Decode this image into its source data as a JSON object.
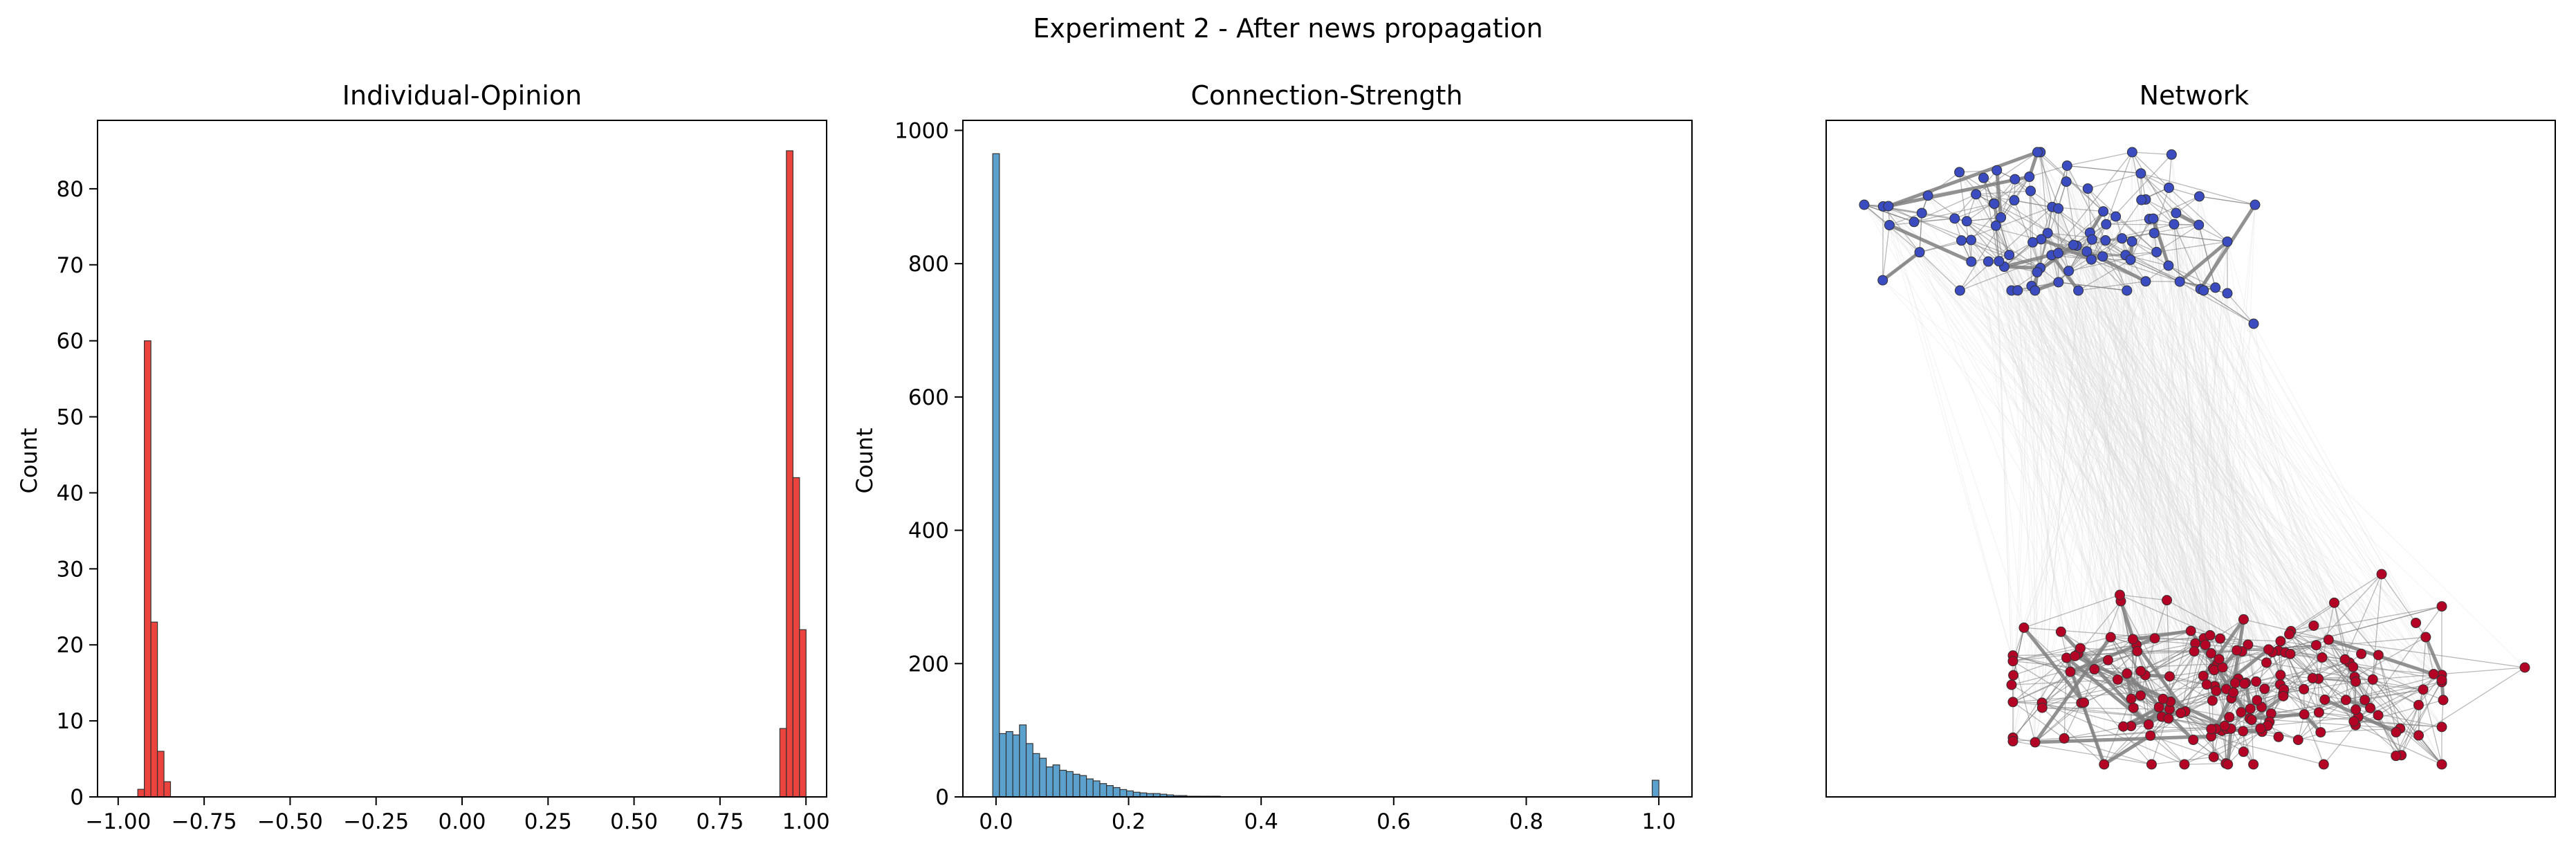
{
  "figure": {
    "suptitle": "Experiment 2 - After news propagation"
  },
  "chart_data": [
    {
      "type": "bar",
      "title": "Individual-Opinion",
      "xlabel": "",
      "ylabel": "Count",
      "xlim": [
        -1.06,
        1.06
      ],
      "ylim": [
        0,
        89
      ],
      "xticks": [
        -1.0,
        -0.75,
        -0.5,
        -0.25,
        0.0,
        0.25,
        0.5,
        0.75,
        1.0
      ],
      "xtick_labels": [
        "−1.00",
        "−0.75",
        "−0.50",
        "−0.25",
        "0.00",
        "0.25",
        "0.50",
        "0.75",
        "1.00"
      ],
      "yticks": [
        0,
        10,
        20,
        30,
        40,
        50,
        60,
        70,
        80
      ],
      "ytick_labels": [
        "0",
        "10",
        "20",
        "30",
        "40",
        "50",
        "60",
        "70",
        "80"
      ],
      "color": "#e8221b",
      "bin_width": 0.0192,
      "bins": [
        {
          "x0": -0.943,
          "value": 1
        },
        {
          "x0": -0.924,
          "value": 60
        },
        {
          "x0": -0.905,
          "value": 23
        },
        {
          "x0": -0.886,
          "value": 6
        },
        {
          "x0": -0.867,
          "value": 2
        },
        {
          "x0": 0.924,
          "value": 9
        },
        {
          "x0": 0.943,
          "value": 85
        },
        {
          "x0": 0.962,
          "value": 42
        },
        {
          "x0": 0.981,
          "value": 22
        }
      ],
      "grid": false,
      "legend": "none"
    },
    {
      "type": "bar",
      "title": "Connection-Strength",
      "xlabel": "",
      "ylabel": "Count",
      "xlim": [
        -0.05,
        1.05
      ],
      "ylim": [
        0,
        1015
      ],
      "xticks": [
        0.0,
        0.2,
        0.4,
        0.6,
        0.8,
        1.0
      ],
      "xtick_labels": [
        "0.0",
        "0.2",
        "0.4",
        "0.6",
        "0.8",
        "1.0"
      ],
      "yticks": [
        0,
        200,
        400,
        600,
        800,
        1000
      ],
      "ytick_labels": [
        "0",
        "200",
        "400",
        "600",
        "800",
        "1000"
      ],
      "color": "#3f8fc4",
      "bin_start": -0.005,
      "bin_width": 0.0101,
      "values": [
        965,
        95,
        98,
        93,
        108,
        80,
        65,
        58,
        45,
        48,
        40,
        38,
        34,
        32,
        27,
        24,
        20,
        17,
        14,
        11,
        9,
        7,
        6,
        5,
        5,
        4,
        3,
        2,
        2,
        1,
        1,
        1,
        1,
        1
      ],
      "extra_bins": [
        {
          "x0": 0.99,
          "value": 25
        }
      ],
      "grid": false,
      "legend": "none"
    }
  ],
  "network": {
    "title": "Network",
    "group_a_color": "#3b4cc0",
    "group_b_color": "#b40426",
    "edge_color": "#7f7f7f",
    "cross_edge_color": "#d9d9d9"
  }
}
